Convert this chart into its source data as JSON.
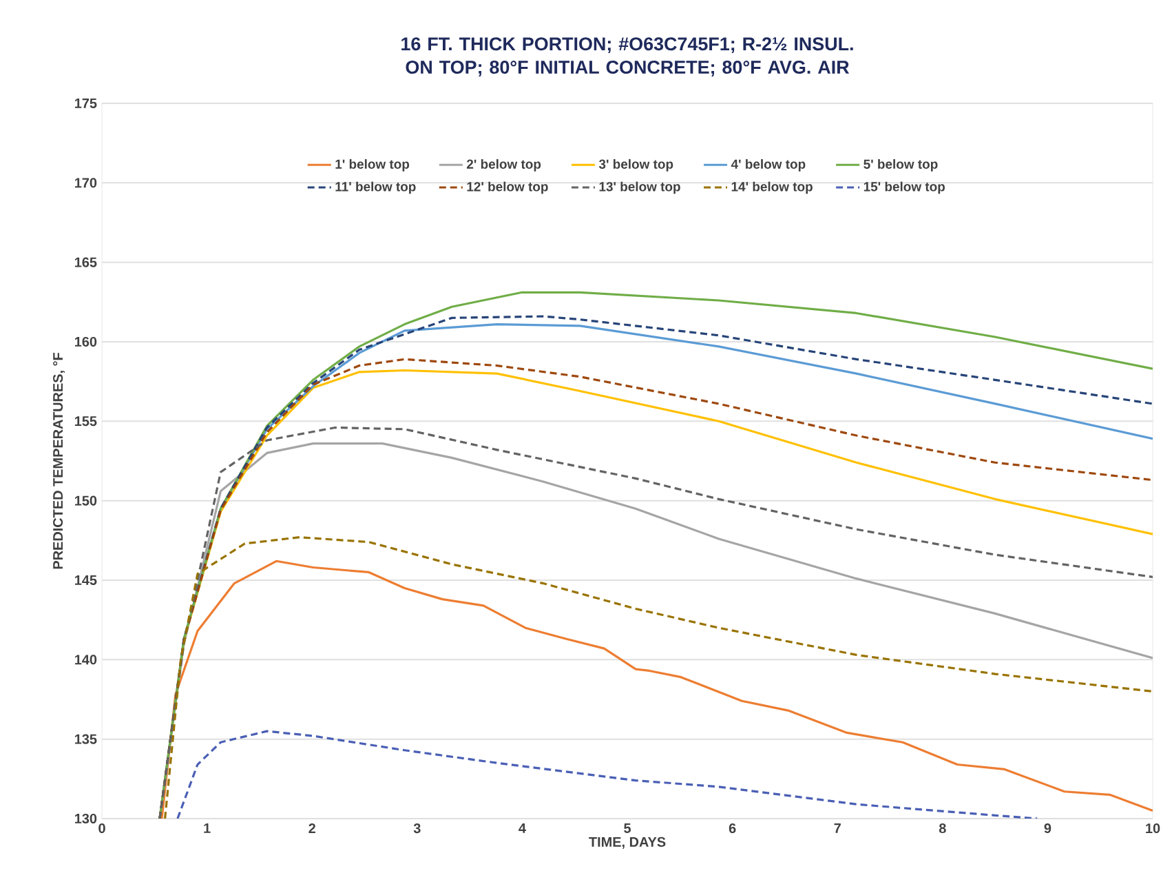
{
  "chart_data": {
    "type": "line",
    "title": "16 FT. THICK PORTION; #O63C745F1; R-2½ INSUL. ON TOP; 80°F INITIAL CONCRETE; 80°F AVG. AIR",
    "xlabel": "TIME, DAYS",
    "ylabel": "PREDICTED TEMPERATURES, °F",
    "xlim": [
      0,
      10
    ],
    "ylim": [
      130,
      175
    ],
    "xticks": [
      0,
      1,
      2,
      3,
      4,
      5,
      6,
      7,
      8,
      9,
      10
    ],
    "yticks": [
      130,
      135,
      140,
      145,
      150,
      155,
      160,
      165,
      170,
      175
    ],
    "grid": "y",
    "legend": "top",
    "marker": "none",
    "series": [
      {
        "name": "1' below top",
        "color": "#ed7d31",
        "line_style": "solid",
        "x": [
          0.57,
          0.7,
          0.91,
          1.26,
          1.66,
          2.01,
          2.54,
          2.88,
          3.24,
          3.63,
          4.03,
          4.42,
          4.78,
          5.08,
          5.21,
          5.51,
          6.09,
          6.53,
          7.09,
          7.62,
          8.14,
          8.59,
          9.16,
          9.59,
          10
        ],
        "values": [
          130,
          137.8,
          141.8,
          144.8,
          146.2,
          145.8,
          145.5,
          144.5,
          143.8,
          143.4,
          142.0,
          141.3,
          140.7,
          139.4,
          139.3,
          138.9,
          137.4,
          136.8,
          135.4,
          134.8,
          133.4,
          133.1,
          131.7,
          131.5,
          130.5
        ]
      },
      {
        "name": "2' below top",
        "color": "#a5a5a5",
        "line_style": "solid",
        "x": [
          0.55,
          0.78,
          1.13,
          1.57,
          2.01,
          2.67,
          3.33,
          4.2,
          5.08,
          5.87,
          7.18,
          8.5,
          10
        ],
        "values": [
          130,
          141,
          150.6,
          153.0,
          153.6,
          153.6,
          152.7,
          151.2,
          149.5,
          147.6,
          145.1,
          142.9,
          140.1
        ]
      },
      {
        "name": "3' below top",
        "color": "#ffc000",
        "line_style": "solid",
        "x": [
          0.55,
          0.78,
          1.13,
          1.57,
          2.01,
          2.45,
          2.88,
          3.76,
          4.55,
          5.87,
          7.18,
          8.5,
          10
        ],
        "values": [
          130,
          141.2,
          149.3,
          154.1,
          157.1,
          158.1,
          158.2,
          158.0,
          156.9,
          155.0,
          152.4,
          150.1,
          147.9
        ]
      },
      {
        "name": "4' below top",
        "color": "#5b9bd5",
        "line_style": "solid",
        "x": [
          0.55,
          0.78,
          1.13,
          1.57,
          2.01,
          2.45,
          2.88,
          3.76,
          4.55,
          5.87,
          7.18,
          8.5,
          10
        ],
        "values": [
          130,
          141.3,
          149.5,
          154.5,
          157.2,
          159.3,
          160.7,
          161.1,
          161.0,
          159.7,
          158.0,
          156.1,
          153.9
        ]
      },
      {
        "name": "5' below top",
        "color": "#70ad47",
        "line_style": "solid",
        "x": [
          0.55,
          0.78,
          1.13,
          1.57,
          2.01,
          2.45,
          2.88,
          3.33,
          3.99,
          4.55,
          5.87,
          7.18,
          8.5,
          10
        ],
        "values": [
          130,
          141.3,
          149.5,
          154.7,
          157.6,
          159.7,
          161.1,
          162.2,
          163.1,
          163.1,
          162.6,
          161.8,
          160.3,
          158.3
        ]
      },
      {
        "name": "11' below top",
        "color": "#264478",
        "line_style": "dashed",
        "x": [
          0.55,
          0.78,
          1.13,
          1.57,
          2.01,
          2.45,
          3.33,
          4.2,
          4.55,
          5.87,
          7.18,
          8.5,
          10
        ],
        "values": [
          130,
          141.3,
          149.5,
          154.6,
          157.4,
          159.5,
          161.5,
          161.6,
          161.4,
          160.4,
          158.9,
          157.6,
          156.1
        ]
      },
      {
        "name": "12' below top",
        "color": "#9e480e",
        "line_style": "dashed",
        "x": [
          0.55,
          0.78,
          1.13,
          1.57,
          2.01,
          2.45,
          2.88,
          3.76,
          4.55,
          5.87,
          7.18,
          8.5,
          10
        ],
        "values": [
          130,
          141.2,
          149.4,
          154.3,
          157.3,
          158.5,
          158.9,
          158.5,
          157.8,
          156.1,
          154.1,
          152.4,
          151.3
        ]
      },
      {
        "name": "13' below top",
        "color": "#636363",
        "line_style": "dashed",
        "x": [
          0.55,
          0.78,
          1.13,
          1.57,
          2.22,
          2.88,
          3.76,
          5.08,
          5.87,
          7.18,
          8.5,
          10
        ],
        "values": [
          130,
          141,
          151.8,
          153.8,
          154.6,
          154.5,
          153.2,
          151.4,
          150.1,
          148.2,
          146.6,
          145.2
        ]
      },
      {
        "name": "14' below top",
        "color": "#997300",
        "line_style": "dashed",
        "x": [
          0.6,
          0.75,
          0.91,
          1.36,
          1.88,
          2.54,
          3.33,
          4.2,
          5.08,
          5.87,
          7.18,
          8.5,
          10
        ],
        "values": [
          130,
          140,
          145.4,
          147.3,
          147.7,
          147.4,
          146.0,
          144.8,
          143.2,
          142.0,
          140.3,
          139.1,
          138.0
        ]
      },
      {
        "name": "15' below top",
        "color": "#4a5fb5",
        "line_style": "dashed",
        "x": [
          0.72,
          0.91,
          1.13,
          1.57,
          2.01,
          2.88,
          3.76,
          5.08,
          5.87,
          7.18,
          8.5,
          8.9
        ],
        "values": [
          130,
          133.4,
          134.8,
          135.5,
          135.2,
          134.3,
          133.5,
          132.4,
          132.0,
          130.9,
          130.2,
          130.0
        ]
      }
    ]
  }
}
